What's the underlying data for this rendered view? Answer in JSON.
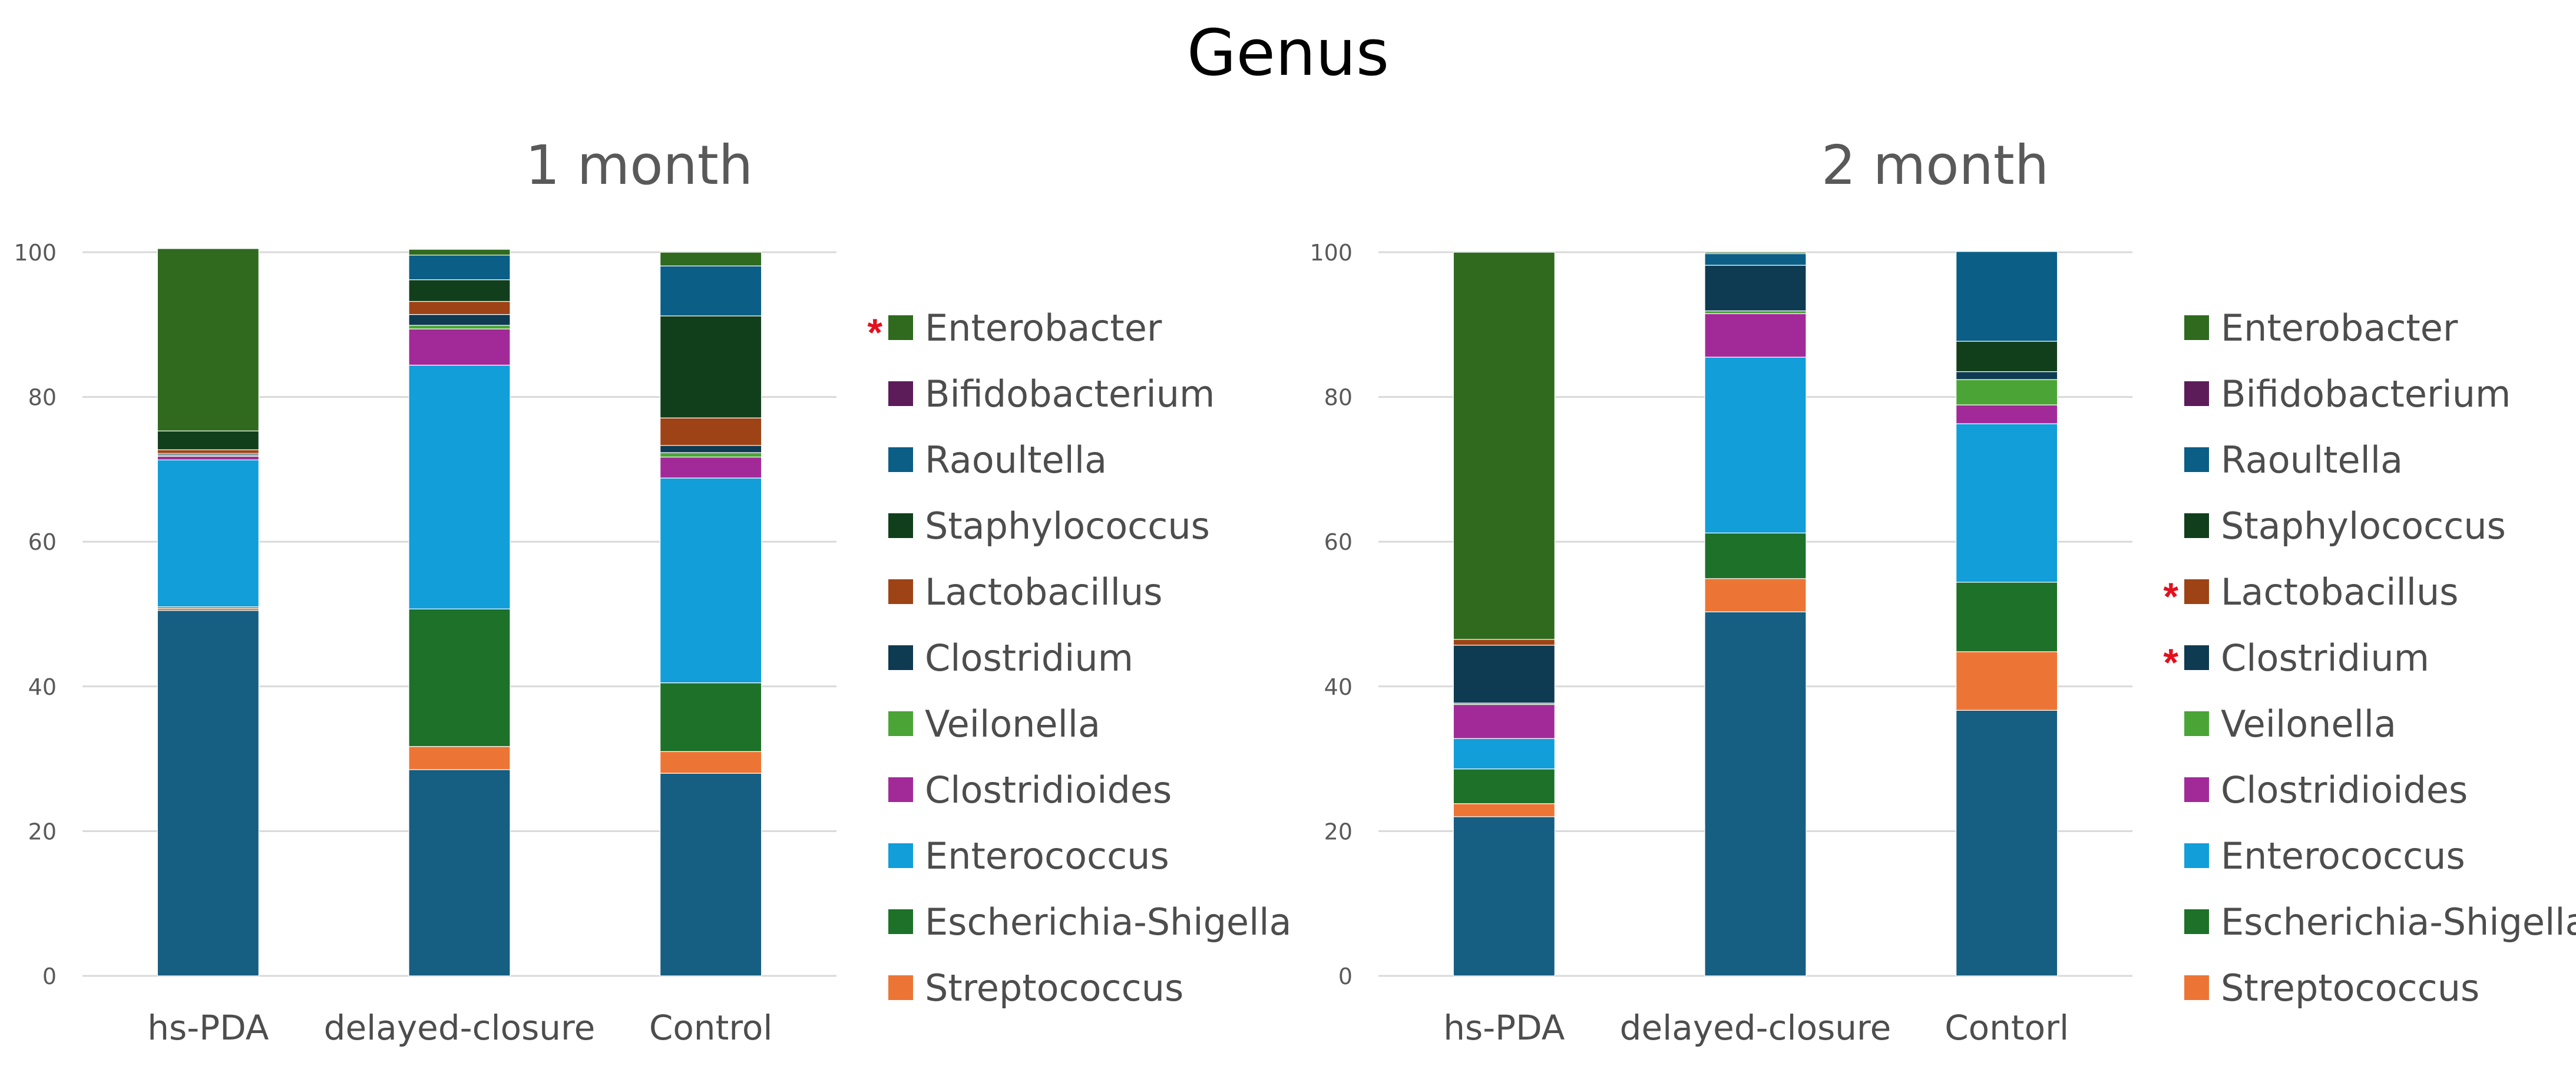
{
  "figure": {
    "title": "Genus"
  },
  "legend_items": [
    {
      "label": "Enterobacter",
      "color": "#2f6a1f"
    },
    {
      "label": "Bifidobacterium",
      "color": "#5c1c5a"
    },
    {
      "label": "Raoultella",
      "color": "#0b5e86"
    },
    {
      "label": "Staphylococcus",
      "color": "#113f1c"
    },
    {
      "label": "Lactobacillus",
      "color": "#9e4316"
    },
    {
      "label": "Clostridium",
      "color": "#0e3a52"
    },
    {
      "label": "Veilonella",
      "color": "#4aa536"
    },
    {
      "label": "Clostridioides",
      "color": "#a22a98"
    },
    {
      "label": "Enterococcus",
      "color": "#119ed9"
    },
    {
      "label": "Escherichia-Shigella",
      "color": "#1d7129"
    },
    {
      "label": "Streptococcus",
      "color": "#ec7535"
    }
  ],
  "base_color": "#165e82",
  "gridline_color": "#d9d9d9",
  "significance_marker": "*",
  "chart_data": [
    {
      "type": "bar",
      "stacked": true,
      "title": "1 month",
      "categories": [
        "hs-PDA",
        "delayed-closure",
        "Control"
      ],
      "ylim": [
        0,
        100
      ],
      "yticks": [
        "0",
        "20",
        "40",
        "60",
        "80",
        "100"
      ],
      "grid": true,
      "legend_position": "right",
      "significant_series": [
        "Enterobacter"
      ],
      "series": [
        {
          "name": "",
          "values": [
            50.5,
            28.5,
            28.0
          ]
        },
        {
          "name": "Streptococcus",
          "values": [
            0.3,
            3.2,
            3.0
          ]
        },
        {
          "name": "Escherichia-Shigella",
          "values": [
            0.2,
            19.0,
            9.5
          ]
        },
        {
          "name": "Enterococcus",
          "values": [
            20.3,
            33.7,
            28.3
          ]
        },
        {
          "name": "Clostridioides",
          "values": [
            0.5,
            5.0,
            2.9
          ]
        },
        {
          "name": "Veilonella",
          "values": [
            0.2,
            0.5,
            0.6
          ]
        },
        {
          "name": "Clostridium",
          "values": [
            0.2,
            1.5,
            1.0
          ]
        },
        {
          "name": "Lactobacillus",
          "values": [
            0.5,
            1.8,
            3.8
          ]
        },
        {
          "name": "Staphylococcus",
          "values": [
            2.6,
            3.0,
            14.1
          ]
        },
        {
          "name": "Raoultella",
          "values": [
            0.0,
            3.4,
            6.9
          ]
        },
        {
          "name": "Bifidobacterium",
          "values": [
            0.0,
            0.0,
            0.0
          ]
        },
        {
          "name": "Enterobacter",
          "values": [
            25.2,
            0.8,
            1.9
          ]
        }
      ]
    },
    {
      "type": "bar",
      "stacked": true,
      "title": "2 month",
      "categories": [
        "hs-PDA",
        "delayed-closure",
        "Contorl"
      ],
      "ylim": [
        0,
        100
      ],
      "yticks": [
        "0",
        "20",
        "40",
        "60",
        "80",
        "100"
      ],
      "grid": true,
      "legend_position": "right",
      "significant_series": [
        "Lactobacillus",
        "Clostridium"
      ],
      "series": [
        {
          "name": "",
          "values": [
            22.0,
            50.3,
            36.7
          ]
        },
        {
          "name": "Streptococcus",
          "values": [
            1.8,
            4.6,
            8.1
          ]
        },
        {
          "name": "Escherichia-Shigella",
          "values": [
            4.8,
            6.3,
            9.6
          ]
        },
        {
          "name": "Enterococcus",
          "values": [
            4.2,
            24.3,
            21.9
          ]
        },
        {
          "name": "Clostridioides",
          "values": [
            4.7,
            6.0,
            2.6
          ]
        },
        {
          "name": "Veilonella",
          "values": [
            0.2,
            0.4,
            3.5
          ]
        },
        {
          "name": "Clostridium",
          "values": [
            8.0,
            6.3,
            1.1
          ]
        },
        {
          "name": "Lactobacillus",
          "values": [
            0.8,
            0.0,
            0.0
          ]
        },
        {
          "name": "Staphylococcus",
          "values": [
            0.0,
            0.0,
            4.2
          ]
        },
        {
          "name": "Raoultella",
          "values": [
            0.0,
            1.6,
            12.4
          ]
        },
        {
          "name": "Bifidobacterium",
          "values": [
            0.0,
            0.0,
            0.0
          ]
        },
        {
          "name": "Enterobacter",
          "values": [
            53.5,
            0.2,
            0.0
          ]
        }
      ]
    }
  ]
}
